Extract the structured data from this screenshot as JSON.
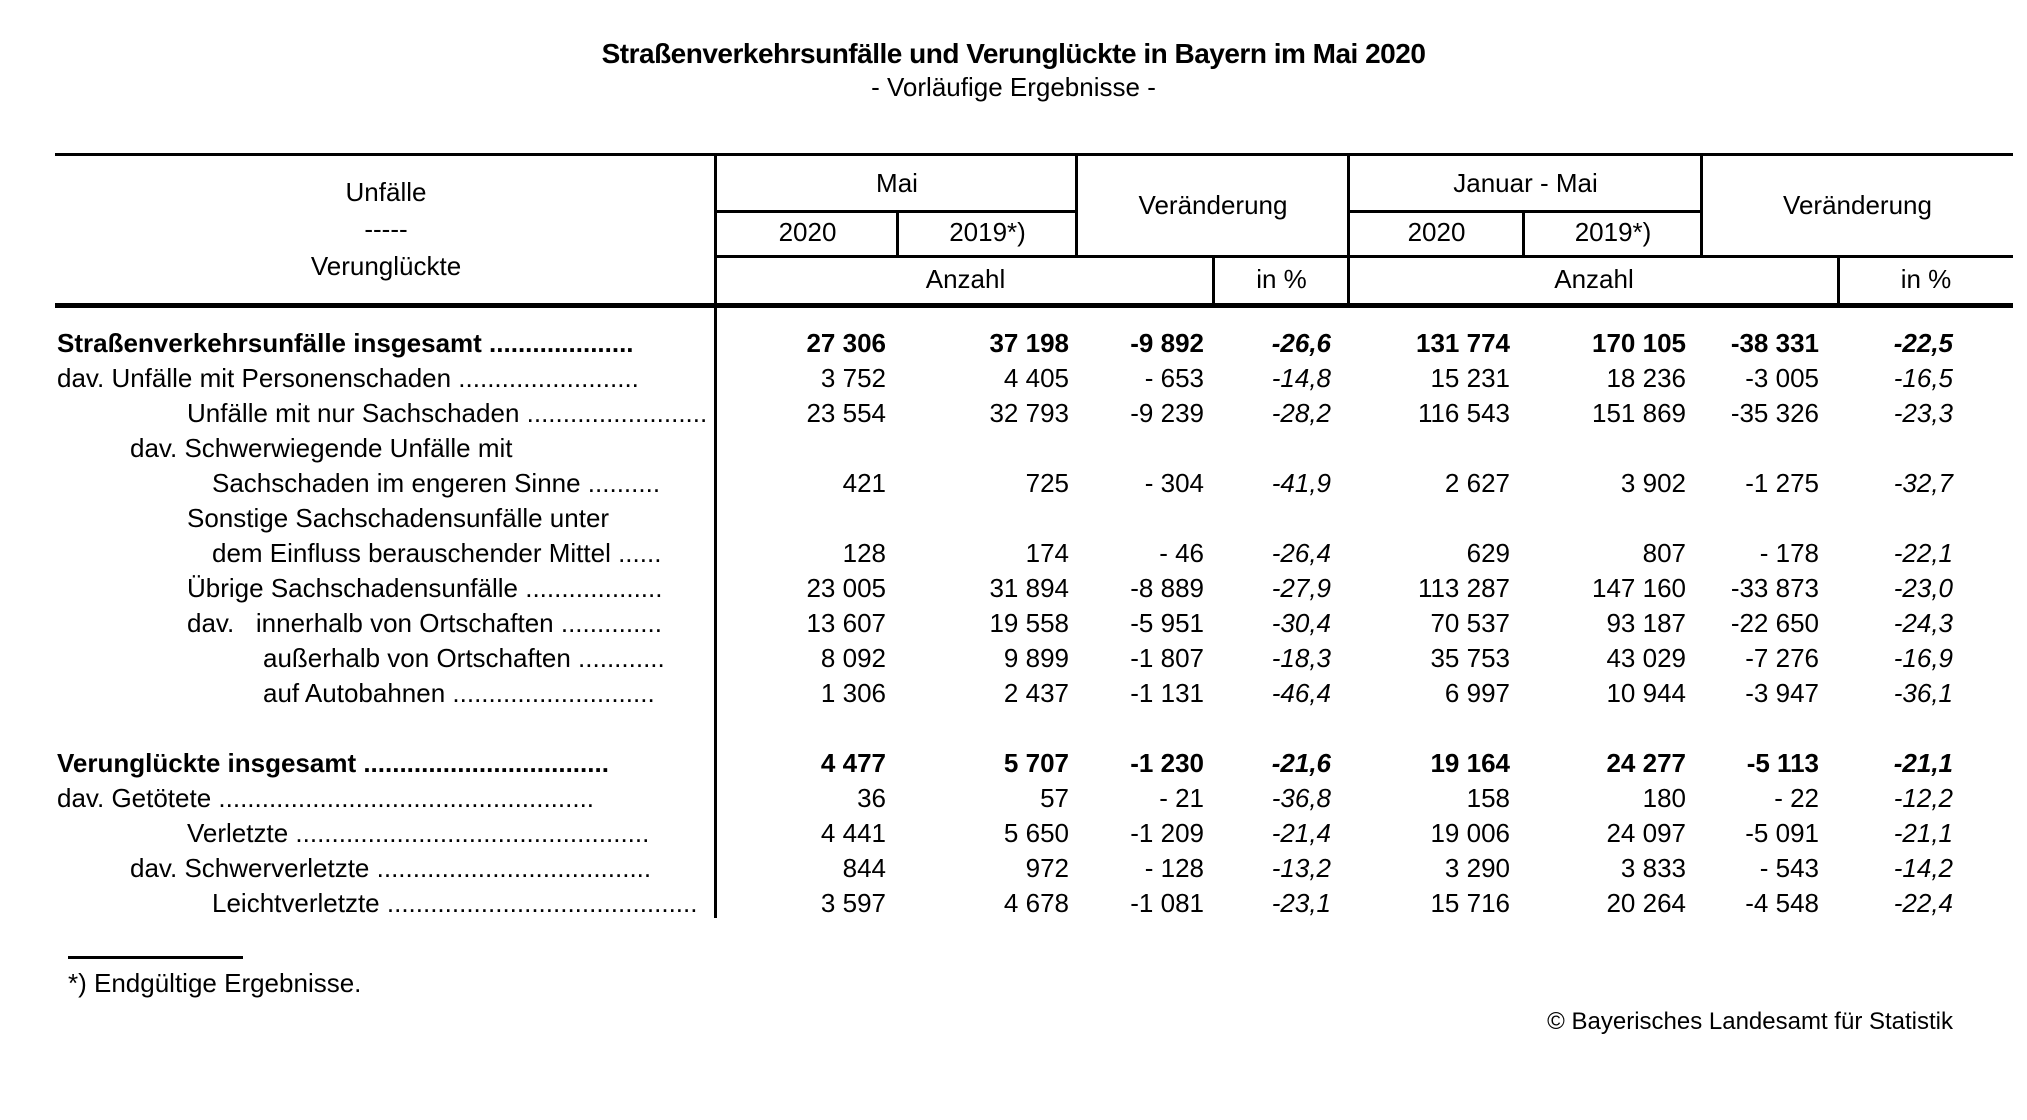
{
  "title": "Straßenverkehrsunfälle und Verunglückte in Bayern im Mai 2020",
  "subtitle": "- Vorläufige Ergebnisse -",
  "header": {
    "stub_top": "Unfälle",
    "stub_sep": "-----",
    "stub_bottom": "Verunglückte",
    "group_mai": "Mai",
    "group_jan_mai": "Januar - Mai",
    "change_left": "Veränderung",
    "change_right": "Veränderung",
    "year_2020_mai": "2020",
    "year_2019_mai": "2019*)",
    "year_2020_jan": "2020",
    "year_2019_jan": "2019*)",
    "anzahl_left": "Anzahl",
    "in_pct_left": "in %",
    "anzahl_right": "Anzahl",
    "in_pct_right": "in %"
  },
  "table": {
    "lines": [
      {
        "label": "Straßenverkehrsunfälle insgesamt ....................",
        "values": [
          "27 306",
          "37 198",
          "-9 892",
          "-26,6",
          "131 774",
          "170 105",
          "-38 331",
          "-22,5"
        ]
      },
      {
        "label": "dav. Unfälle mit Personenschaden .........................",
        "values": [
          "3 752",
          "4 405",
          "- 653",
          "-14,8",
          "15 231",
          "18 236",
          "-3 005",
          "-16,5"
        ]
      },
      {
        "label": "Unfälle mit nur Sachschaden .........................",
        "values": [
          "23 554",
          "32 793",
          "-9 239",
          "-28,2",
          "116 543",
          "151 869",
          "-35 326",
          "-23,3"
        ]
      },
      {
        "label": "dav. Schwerwiegende Unfälle mit",
        "values": [
          "",
          "",
          "",
          "",
          "",
          "",
          "",
          ""
        ]
      },
      {
        "label": "Sachschaden im engeren Sinne ..........",
        "values": [
          "421",
          "725",
          "- 304",
          "-41,9",
          "2 627",
          "3 902",
          "-1 275",
          "-32,7"
        ]
      },
      {
        "label": "Sonstige Sachschadensunfälle unter",
        "values": [
          "",
          "",
          "",
          "",
          "",
          "",
          "",
          ""
        ]
      },
      {
        "label": "dem Einfluss berauschender Mittel ......",
        "values": [
          "128",
          "174",
          "- 46",
          "-26,4",
          "629",
          "807",
          "- 178",
          "-22,1"
        ]
      },
      {
        "label": "Übrige Sachschadensunfälle ...................",
        "values": [
          "23 005",
          "31 894",
          "-8 889",
          "-27,9",
          "113 287",
          "147 160",
          "-33 873",
          "-23,0"
        ]
      },
      {
        "label": "dav.   innerhalb von Ortschaften ..............",
        "values": [
          "13 607",
          "19 558",
          "-5 951",
          "-30,4",
          "70 537",
          "93 187",
          "-22 650",
          "-24,3"
        ]
      },
      {
        "label": "außerhalb von Ortschaften ............",
        "values": [
          "8 092",
          "9 899",
          "-1 807",
          "-18,3",
          "35 753",
          "43 029",
          "-7 276",
          "-16,9"
        ]
      },
      {
        "label": "auf Autobahnen ............................",
        "values": [
          "1 306",
          "2 437",
          "-1 131",
          "-46,4",
          "6 997",
          "10 944",
          "-3 947",
          "-36,1"
        ]
      },
      {
        "label": "Verunglückte insgesamt ..................................",
        "values": [
          "4 477",
          "5 707",
          "-1 230",
          "-21,6",
          "19 164",
          "24 277",
          "-5 113",
          "-21,1"
        ]
      },
      {
        "label": "dav. Getötete ....................................................",
        "values": [
          "36",
          "57",
          "- 21",
          "-36,8",
          "158",
          "180",
          "- 22",
          "-12,2"
        ]
      },
      {
        "label": "Verletzte .................................................",
        "values": [
          "4 441",
          "5 650",
          "-1 209",
          "-21,4",
          "19 006",
          "24 097",
          "-5 091",
          "-21,1"
        ]
      },
      {
        "label": "dav. Schwerverletzte ......................................",
        "values": [
          "844",
          "972",
          "- 128",
          "-13,2",
          "3 290",
          "3 833",
          "- 543",
          "-14,2"
        ]
      },
      {
        "label": "Leichtverletzte ...........................................",
        "values": [
          "3 597",
          "4 678",
          "-1 081",
          "-23,1",
          "15 716",
          "20 264",
          "-4 548",
          "-22,4"
        ]
      }
    ]
  },
  "footnote": "*) Endgültige Ergebnisse.",
  "copyright": "© Bayerisches Landesamt für Statistik"
}
